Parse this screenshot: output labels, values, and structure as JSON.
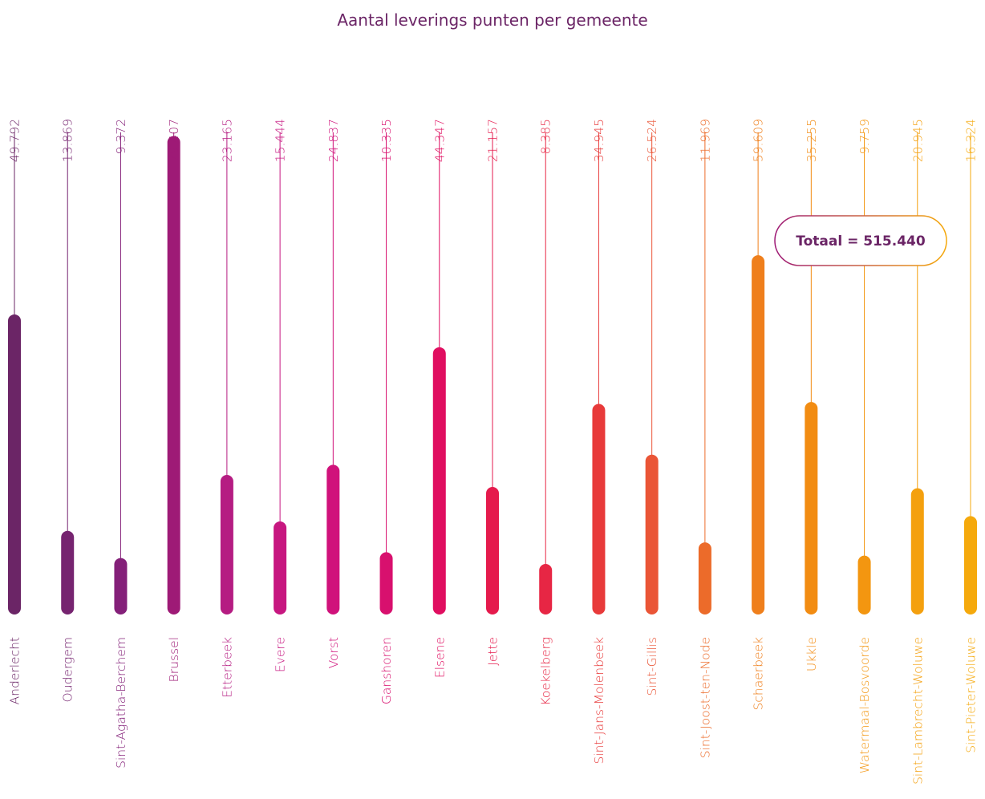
{
  "chart_data": {
    "type": "bar",
    "title": "Aantal leverings punten per gemeente",
    "categories": [
      "Anderlecht",
      "Oudergem",
      "Sint-Agatha-Berchem",
      "Brussel",
      "Etterbeek",
      "Evere",
      "Vorst",
      "Ganshoren",
      "Elsene",
      "Jette",
      "Koekelberg",
      "Sint-Jans-Molenbeek",
      "Sint-Gillis",
      "Sint-Joost-ten-Node",
      "Schaerbeek",
      "Ukkle",
      "Watermaal-Bosvoorde",
      "Sint-Lambrecht-Woluwe",
      "Sint-Pieter-Woluwe"
    ],
    "values": [
      49792,
      13869,
      9372,
      79407,
      23165,
      15444,
      24837,
      10335,
      44347,
      21157,
      8385,
      34945,
      26524,
      11969,
      59609,
      35255,
      9759,
      20945,
      16324
    ],
    "value_labels": [
      "49.792",
      "13.869",
      "9.372",
      "79.407",
      "23.165",
      "15.444",
      "24.837",
      "10.335",
      "44.347",
      "21.157",
      "8.385",
      "34.945",
      "26.524",
      "11.969",
      "59.609",
      "35.255",
      "9.759",
      "20.945",
      "16.324"
    ],
    "colors": [
      "#6b2566",
      "#762470",
      "#842079",
      "#9e1a76",
      "#b51c82",
      "#c71780",
      "#d0127b",
      "#d8106e",
      "#e00e60",
      "#e51a4c",
      "#e72644",
      "#e83a3a",
      "#ea5536",
      "#ec6b2a",
      "#ef7f1c",
      "#f28c12",
      "#f39610",
      "#f4a00e",
      "#f5a90c"
    ],
    "ylim": [
      0,
      80000
    ],
    "annotation": "Totaal = 515.440",
    "grid": false,
    "legend": "none"
  }
}
